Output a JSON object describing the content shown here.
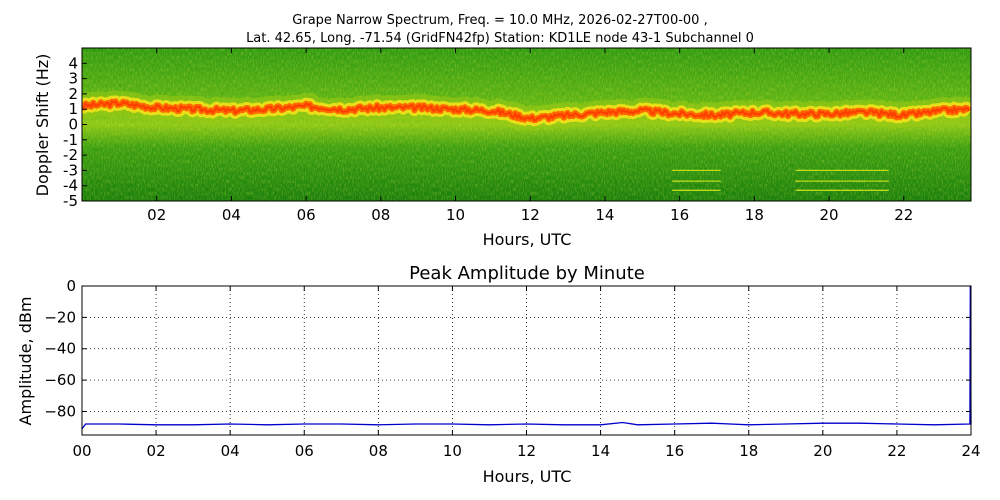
{
  "figure": {
    "title_line1": "Grape Narrow Spectrum, Freq. = 10.0 MHz, 2026-02-27T00-00 ,",
    "title_line2": "Lat.  42.65, Long. -71.54 (GridFN42fp) Station: KD1LE node 43-1 Subchannel 0"
  },
  "chart_data": [
    {
      "type": "heatmap",
      "title": "",
      "xlabel": "Hours, UTC",
      "ylabel": "Doppler Shift (Hz)",
      "xlim": [
        0,
        23.8
      ],
      "ylim": [
        -5,
        5
      ],
      "x_ticks": [
        2,
        4,
        6,
        8,
        10,
        12,
        14,
        16,
        18,
        20,
        22
      ],
      "x_tick_labels": [
        "02",
        "04",
        "06",
        "08",
        "10",
        "12",
        "14",
        "16",
        "18",
        "20",
        "22"
      ],
      "y_ticks": [
        4,
        3,
        2,
        1,
        0,
        -1,
        -2,
        -3,
        -4,
        -5
      ],
      "y_tick_labels": [
        "4",
        "3",
        "2",
        "1",
        "0",
        "-1",
        "-2",
        "-3",
        "-4",
        "-5"
      ],
      "colors": {
        "background": "#1f8a0f",
        "mid": "#9acb14",
        "peak": "#ff6a00",
        "core": "#ff3c00"
      },
      "doppler_peak_trace": {
        "hours": [
          0,
          1,
          2,
          3,
          4,
          5,
          6,
          7,
          8,
          9,
          10,
          11,
          12,
          13,
          14,
          15,
          16,
          17,
          18,
          19,
          20,
          21,
          22,
          23,
          23.8
        ],
        "doppler": [
          1.2,
          1.4,
          1.1,
          1.0,
          0.9,
          1.0,
          1.2,
          1.0,
          1.1,
          1.1,
          1.0,
          0.9,
          0.4,
          0.6,
          0.8,
          0.9,
          0.7,
          0.6,
          0.8,
          0.7,
          0.7,
          0.8,
          0.6,
          0.9,
          1.0
        ]
      },
      "carrier_lines": [
        {
          "x_start": 15.8,
          "x_end": 17.1,
          "doppler": [
            -3.0,
            -3.7,
            -4.3
          ]
        },
        {
          "x_start": 19.1,
          "x_end": 21.6,
          "doppler": [
            -3.0,
            -3.7,
            -4.3
          ]
        }
      ]
    },
    {
      "type": "line",
      "title": "Peak Amplitude by Minute",
      "xlabel": "Hours, UTC",
      "ylabel": "Amplitude, dBm",
      "xlim": [
        0,
        24
      ],
      "ylim": [
        -95,
        0
      ],
      "grid": true,
      "x_ticks": [
        0,
        2,
        4,
        6,
        8,
        10,
        12,
        14,
        16,
        18,
        20,
        22,
        24
      ],
      "x_tick_labels": [
        "00",
        "02",
        "04",
        "06",
        "08",
        "10",
        "12",
        "14",
        "16",
        "18",
        "20",
        "22",
        "24"
      ],
      "y_ticks": [
        0,
        -20,
        -40,
        -60,
        -80
      ],
      "y_tick_labels": [
        "0",
        "−20",
        "−40",
        "−60",
        "−80"
      ],
      "series": [
        {
          "color": "#0000cc",
          "x": [
            0,
            0.1,
            1,
            2,
            3,
            4,
            5,
            6,
            7,
            8,
            9,
            10,
            11,
            12,
            13,
            14,
            14.6,
            15,
            16,
            17,
            17.5,
            18,
            19,
            20,
            21,
            22,
            23,
            23.97,
            23.98,
            24
          ],
          "values": [
            -91,
            -88,
            -88,
            -88.5,
            -88.5,
            -88,
            -88.5,
            -88,
            -88,
            -88.5,
            -88,
            -88,
            -88.5,
            -88,
            -88.5,
            -88.5,
            -87,
            -88.5,
            -88,
            -87.5,
            -88,
            -88.5,
            -88,
            -87.5,
            -87.5,
            -88,
            -88.5,
            -88,
            0,
            -88
          ]
        }
      ]
    }
  ]
}
